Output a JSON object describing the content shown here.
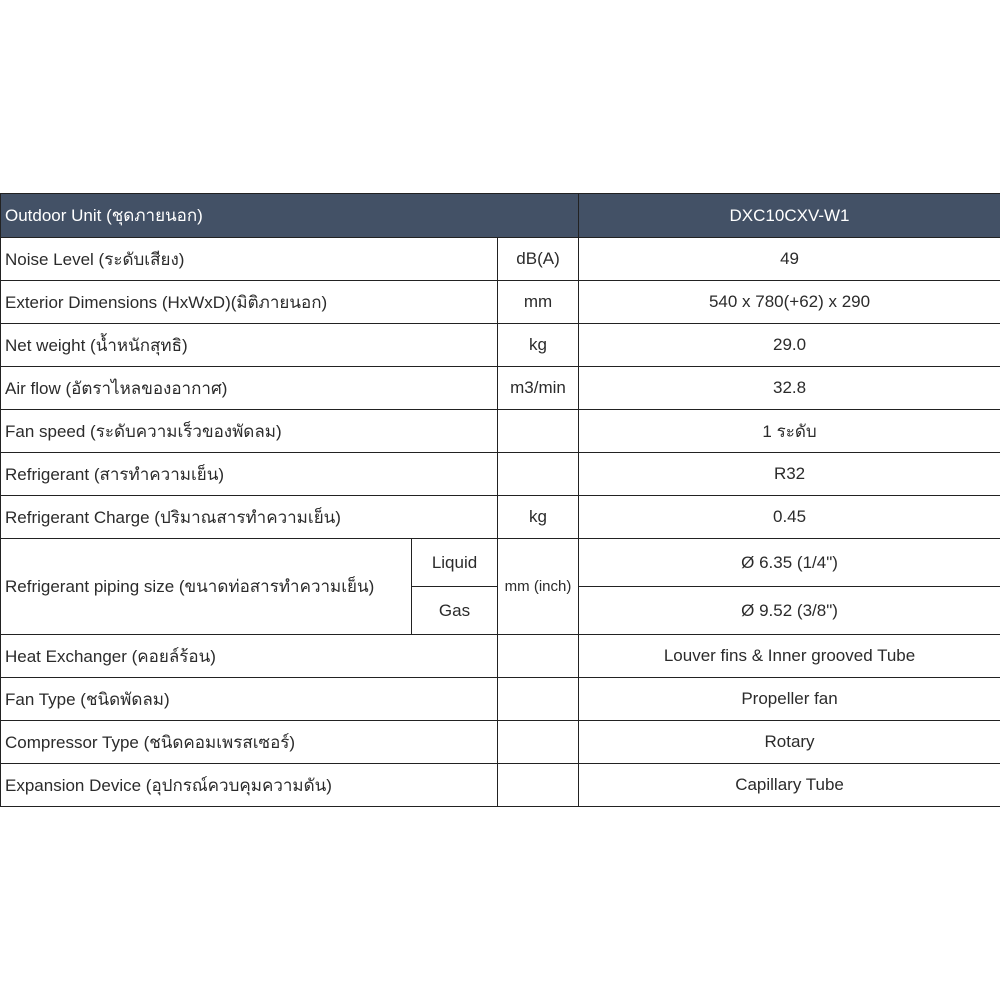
{
  "header": {
    "title": "Outdoor Unit (ชุดภายนอก)",
    "model": "DXC10CXV-W1"
  },
  "rows": [
    {
      "label": "Noise Level (ระดับเสียง)",
      "unit": "dB(A)",
      "value": "49"
    },
    {
      "label": "Exterior Dimensions (HxWxD)(มิติภายนอก)",
      "unit": "mm",
      "value": "540 x 780(+62) x 290"
    },
    {
      "label": "Net weight (น้ำหนักสุทธิ)",
      "unit": "kg",
      "value": "29.0"
    },
    {
      "label": "Air flow (อัตราไหลของอากาศ)",
      "unit": "m3/min",
      "value": "32.8"
    },
    {
      "label": "Fan speed (ระดับความเร็วของพัดลม)",
      "unit": "",
      "value": "1 ระดับ"
    },
    {
      "label": "Refrigerant (สารทำความเย็น)",
      "unit": "",
      "value": "R32"
    },
    {
      "label": "Refrigerant Charge (ปริมาณสารทำความเย็น)",
      "unit": "kg",
      "value": "0.45"
    }
  ],
  "piping": {
    "label": "Refrigerant piping size (ขนาดท่อสารทำความเย็น)",
    "unit": "mm (inch)",
    "liquid_label": "Liquid",
    "liquid_value": "Ø 6.35 (1/4\")",
    "gas_label": "Gas",
    "gas_value": "Ø 9.52 (3/8\")"
  },
  "rows2": [
    {
      "label": "Heat Exchanger (คอยล์ร้อน)",
      "unit": "",
      "value": "Louver fins & Inner grooved Tube"
    },
    {
      "label": "Fan Type (ชนิดพัดลม)",
      "unit": "",
      "value": "Propeller fan"
    },
    {
      "label": "Compressor Type (ชนิดคอมเพรสเซอร์)",
      "unit": "",
      "value": "Rotary"
    },
    {
      "label": "Expansion Device (อุปกรณ์ควบคุมความดัน)",
      "unit": "",
      "value": "Capillary Tube"
    }
  ]
}
